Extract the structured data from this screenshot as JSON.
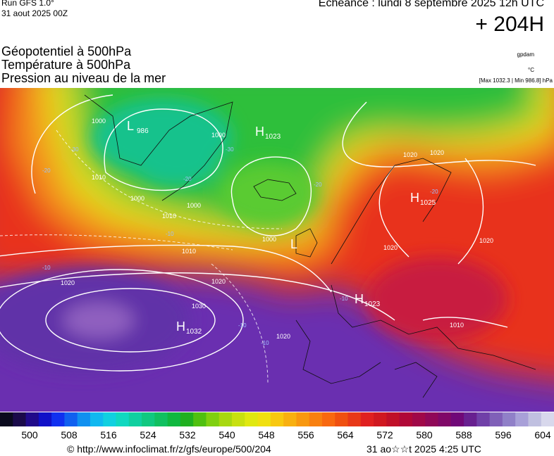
{
  "header": {
    "run": "Run GFS 1.0°",
    "run_date": "31 aout 2025 00Z",
    "echeance": "Echéance : lundi 8 septembre 2025 12h UTC",
    "horizon": "+ 204H",
    "fields": [
      "Géopotentiel à 500hPa",
      "Température à 500hPa",
      "Pression au niveau de la mer"
    ],
    "unit_geopotential": "gpdam",
    "unit_temperature": "°C",
    "pressure_range": "[Max 1032.3 | Min 986.8] hPa"
  },
  "map": {
    "pressure_centers": [
      {
        "type": "L",
        "value": "986"
      },
      {
        "type": "H",
        "value": "1023"
      },
      {
        "type": "L",
        "value": ""
      },
      {
        "type": "H",
        "value": "1025"
      },
      {
        "type": "H",
        "value": "1023"
      },
      {
        "type": "H",
        "value": "1032"
      }
    ],
    "isobar_labels": [
      "1000",
      "1010",
      "1000",
      "1010",
      "1000",
      "1000",
      "1000",
      "1010",
      "1020",
      "1020",
      "1020",
      "1020",
      "1030",
      "1020",
      "1020",
      "1010",
      "1020"
    ],
    "temperature_labels": [
      "-30",
      "-30",
      "-20",
      "-20",
      "-20",
      "-10",
      "-10",
      "-10",
      "-10",
      "-20",
      "-10"
    ],
    "colors": {
      "purple": "#6a2fb0",
      "red": "#e8301e",
      "orange": "#f6921e",
      "yellow": "#dede1e",
      "green": "#2fbf3a",
      "teal": "#18c28c"
    }
  },
  "scale": {
    "colors": [
      "#0a0a1e",
      "#1a0a4a",
      "#200a8a",
      "#1010c8",
      "#1030f0",
      "#1060f0",
      "#1090f0",
      "#10b8f0",
      "#10d0e0",
      "#10d8c0",
      "#10d0a0",
      "#10c880",
      "#10c060",
      "#10b840",
      "#20b020",
      "#50c010",
      "#80d010",
      "#a8d810",
      "#c8e010",
      "#e0e810",
      "#f0e010",
      "#f8c810",
      "#f8b010",
      "#f89810",
      "#f88010",
      "#f86810",
      "#f05010",
      "#e83818",
      "#e02020",
      "#d01820",
      "#c01028",
      "#b00838",
      "#a00848",
      "#900858",
      "#800868",
      "#700878",
      "#682090",
      "#7040a8",
      "#8060b8",
      "#9080c8",
      "#a8a0d8",
      "#c0c0e0",
      "#d8d8ec"
    ],
    "ticks": [
      "500",
      "508",
      "516",
      "524",
      "532",
      "540",
      "548",
      "556",
      "564",
      "572",
      "580",
      "588",
      "596",
      "604"
    ]
  },
  "footer": {
    "credit": "© http://www.infoclimat.fr/z/gfs/europe/500/204",
    "generated": "31 ao☆☆t 2025  4:25 UTC"
  }
}
